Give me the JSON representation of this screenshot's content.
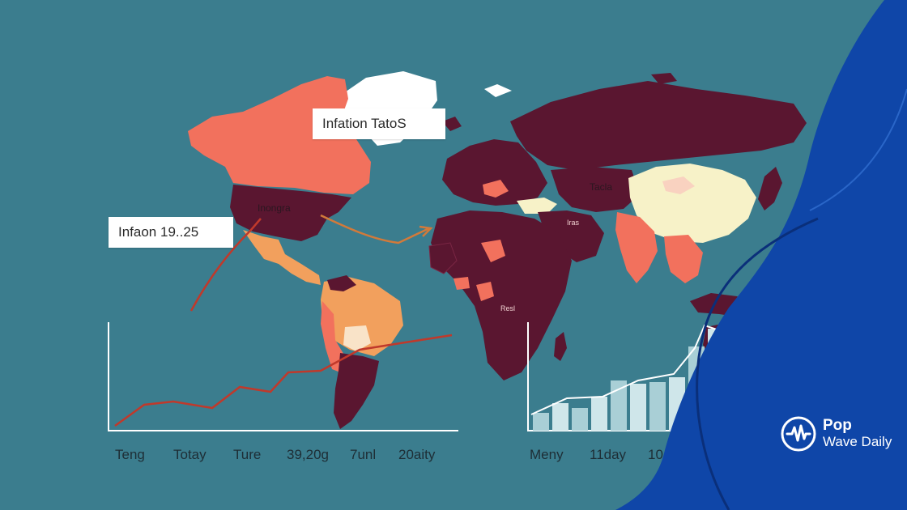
{
  "callouts": {
    "top": "Infation TatoS",
    "left": "Infaon 19..25"
  },
  "map_labels": {
    "usa": "Inongra",
    "china": "Tacla",
    "mideast": "Iras",
    "africa": "Resl"
  },
  "left_chart": {
    "x_labels": [
      "Teng",
      "Totay",
      "Ture",
      "39,20g",
      "7unl",
      "20aity"
    ]
  },
  "right_chart": {
    "x_labels": [
      "Meny",
      "11day",
      "10"
    ]
  },
  "brand": {
    "line1": "Pop",
    "line2": "Wave Daily",
    "icon": "waveform-icon"
  },
  "colors": {
    "ocean": "#3b7d8e",
    "high_inflation": "#5a1630",
    "medium_inflation": "#f2715d",
    "low_inflation": "#f7f2c8",
    "orange": "#f2a05d",
    "brand_blue": "#0f46a8"
  }
}
